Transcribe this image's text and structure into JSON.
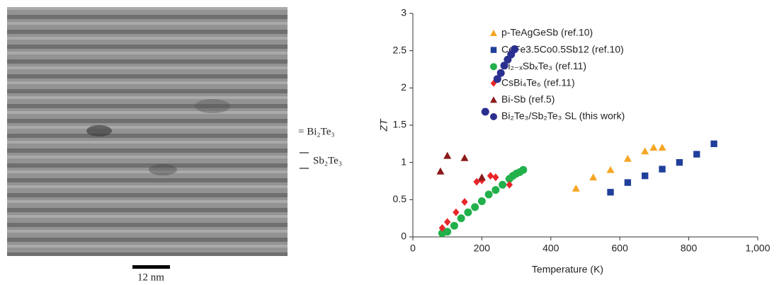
{
  "image": {
    "labels": [
      "= Bi₂Te₃",
      "Sb₂Te₃"
    ],
    "scale_bar": "12 nm"
  },
  "chart_data": {
    "type": "scatter",
    "xlabel": "Temperature (K)",
    "ylabel": "ZT",
    "xlim": [
      0,
      1000
    ],
    "ylim": [
      0,
      3
    ],
    "xticks": [
      0,
      200,
      400,
      600,
      800,
      {
        "value": 1000,
        "label": "1,000"
      }
    ],
    "yticks": [
      0,
      0.5,
      1,
      1.5,
      2,
      2.5,
      3
    ],
    "legend": "upper right",
    "series": [
      {
        "name": "p-TeAgGeSb (ref.10)",
        "color": "#f5a623",
        "marker": "triangle",
        "x": [
          473,
          523,
          573,
          623,
          673,
          698,
          723
        ],
        "values": [
          0.65,
          0.8,
          0.9,
          1.05,
          1.15,
          1.2,
          1.2
        ]
      },
      {
        "name": "CeFe3.5Co0.5Sb12 (ref.10)",
        "color": "#1f3f9a",
        "marker": "square",
        "x": [
          573,
          623,
          673,
          723,
          773,
          823,
          873
        ],
        "values": [
          0.6,
          0.73,
          0.82,
          0.91,
          1.0,
          1.11,
          1.25
        ]
      },
      {
        "name": "Bi₂₋ₓSbₓTe₃ (ref.11)",
        "color": "#22b04b",
        "marker": "circle",
        "x": [
          85,
          100,
          120,
          140,
          160,
          180,
          200,
          220,
          240,
          260,
          280,
          290,
          300,
          310,
          320
        ],
        "values": [
          0.05,
          0.07,
          0.15,
          0.25,
          0.33,
          0.4,
          0.48,
          0.57,
          0.63,
          0.7,
          0.78,
          0.82,
          0.85,
          0.87,
          0.9
        ]
      },
      {
        "name": "CsBi₄Te₆ (ref.11)",
        "color": "#e8262a",
        "marker": "diamond",
        "x": [
          85,
          100,
          125,
          150,
          185,
          200,
          225,
          240,
          280
        ],
        "values": [
          0.12,
          0.2,
          0.33,
          0.47,
          0.74,
          0.76,
          0.82,
          0.8,
          0.7
        ]
      },
      {
        "name": "Bi-Sb (ref.5)",
        "color": "#8b1a1a",
        "marker": "triangle",
        "x": [
          80,
          100,
          150,
          200
        ],
        "values": [
          0.88,
          1.09,
          1.06,
          0.8
        ]
      },
      {
        "name": "Bi₂Te₃/Sb₂Te₃ SL (this work)",
        "color": "#2b2f8f",
        "marker": "circle",
        "x": [
          210,
          245,
          255,
          265,
          275,
          285,
          295
        ],
        "values": [
          1.68,
          2.12,
          2.2,
          2.3,
          2.38,
          2.45,
          2.52
        ]
      }
    ]
  }
}
